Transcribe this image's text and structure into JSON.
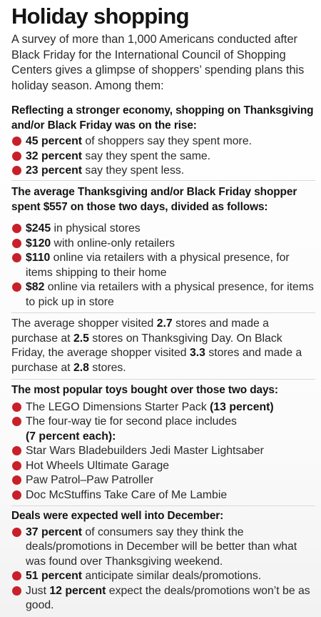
{
  "title": "Holiday shopping",
  "intro": "A survey of more than 1,000 Americans conducted after Black Friday for the International Council of Shopping Centers gives a glimpse of shoppers’ spending plans this holiday season. Among them:",
  "section1": {
    "heading": "Reflecting a stronger economy, shopping on Thanksgiving and/or Black Friday was on the rise:",
    "items": [
      {
        "bold": "45 percent",
        "text": " of shoppers say they spent more."
      },
      {
        "bold": "32 percent",
        "text": " say they spent the same."
      },
      {
        "bold": "23 percent",
        "text": " say they spent less."
      }
    ]
  },
  "section2": {
    "heading": "The average Thanksgiving and/or Black Friday shopper spent $557 on those two days, divided as follows:",
    "items": [
      {
        "bold": "$245",
        "text": " in physical stores"
      },
      {
        "bold": "$120",
        "text": " with online-only retailers"
      },
      {
        "bold": "$110",
        "text": " online via retailers with a physical presence, for items shipping to their home"
      },
      {
        "bold": "$82",
        "text": " online via retailers with a physical presence, for items to pick up in store"
      }
    ]
  },
  "section3": {
    "t1": "The average shopper visited ",
    "b1": "2.7",
    "t2": " stores and made a purchase at ",
    "b2": "2.5",
    "t3": " stores on Thanksgiving Day. On Black Friday, the average shopper visited ",
    "b3": "3.3",
    "t4": " stores and made a purchase at ",
    "b4": "2.8",
    "t5": " stores."
  },
  "section4": {
    "heading": "The most popular toys bought over those two days:",
    "item1_text": "The LEGO Dimensions Starter Pack ",
    "item1_bold": "(13 percent)",
    "item2_text": "The four-way tie for second place includes",
    "item2_bold": "(7 percent each):",
    "items": [
      "Star Wars Bladebuilders Jedi Master Lightsaber",
      "Hot Wheels Ultimate Garage",
      "Paw Patrol–Paw Patroller",
      "Doc McStuffins Take Care of Me Lambie"
    ]
  },
  "section5": {
    "heading": "Deals were expected well into December:",
    "items": [
      {
        "pre": "",
        "bold": "37 percent",
        "text": " of consumers say they think the deals/promotions in December will be better than what was found over Thanksgiving weekend."
      },
      {
        "pre": "",
        "bold": "51 percent",
        "text": " anticipate similar deals/promotions."
      },
      {
        "pre": "Just ",
        "bold": "12 percent",
        "text": " expect the deals/promotions won’t be as good."
      }
    ]
  },
  "colors": {
    "bullet": "#c8202a"
  }
}
